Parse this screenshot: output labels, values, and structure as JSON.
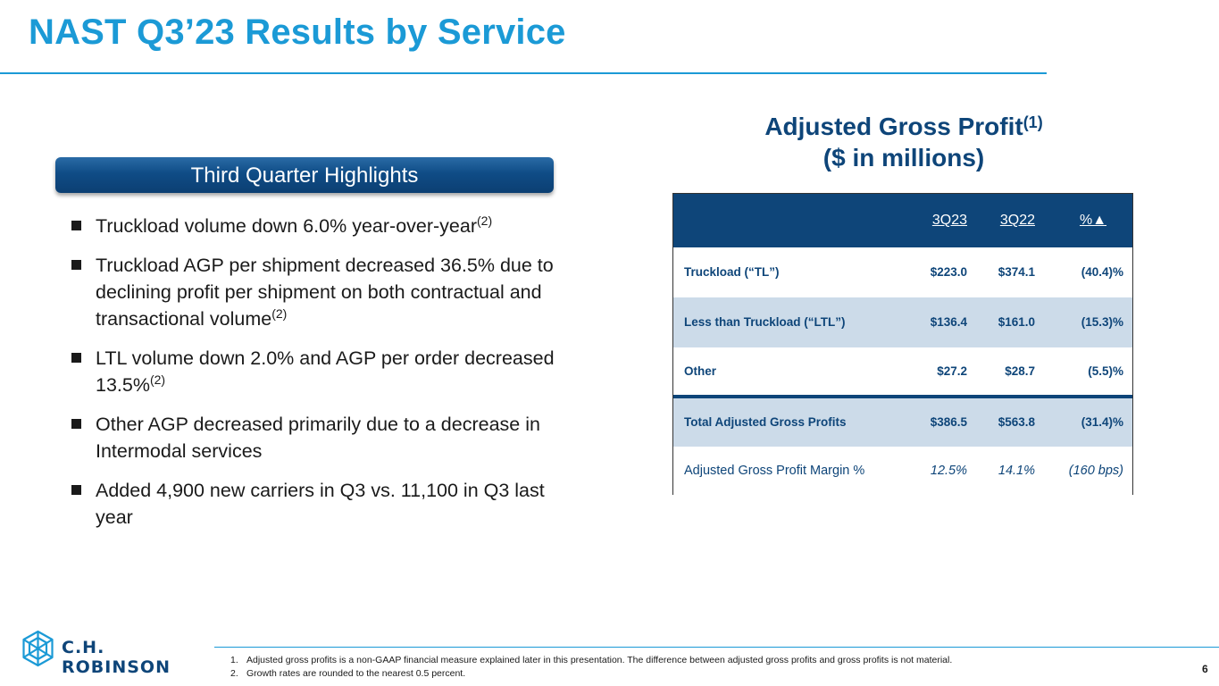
{
  "header": {
    "title": "NAST Q3’23 Results by Service"
  },
  "highlights": {
    "banner": "Third Quarter Highlights",
    "bullets": [
      {
        "text": "Truckload volume down 6.0% year-over-year",
        "sup": "(2)"
      },
      {
        "text": "Truckload AGP per shipment decreased 36.5% due to declining profit per shipment on both contractual and transactional volume",
        "sup": "(2)"
      },
      {
        "text": "LTL volume down 2.0% and AGP per order decreased 13.5%",
        "sup": "(2)"
      },
      {
        "text": "Other AGP decreased primarily due to a decrease in Intermodal services",
        "sup": ""
      },
      {
        "text": "Added 4,900 new carriers in Q3 vs. 11,100 in Q3 last year",
        "sup": ""
      }
    ]
  },
  "agp": {
    "title_line1": "Adjusted Gross Profit",
    "title_sup": "(1)",
    "title_line2": "($ in millions)",
    "columns": [
      "3Q23",
      "3Q22",
      "%▲"
    ],
    "rows": [
      {
        "label": "Truckload (“TL”)",
        "q23": "$223.0",
        "q22": "$374.1",
        "chg": "(40.4)%"
      },
      {
        "label": "Less than Truckload (“LTL”)",
        "q23": "$136.4",
        "q22": "$161.0",
        "chg": "(15.3)%"
      },
      {
        "label": "Other",
        "q23": "$27.2",
        "q22": "$28.7",
        "chg": "(5.5)%"
      },
      {
        "label": "Total Adjusted Gross Profits",
        "q23": "$386.5",
        "q22": "$563.8",
        "chg": "(31.4)%"
      },
      {
        "label": "Adjusted Gross Profit Margin %",
        "q23": "12.5%",
        "q22": "14.1%",
        "chg": "(160 bps)"
      }
    ]
  },
  "footer": {
    "logo_text": "C.H. ROBINSON",
    "footnotes": [
      {
        "num": "1.",
        "text": "Adjusted gross profits is a non-GAAP financial measure explained later in this presentation. The difference between adjusted gross profits and gross profits is not material."
      },
      {
        "num": "2.",
        "text": "Growth rates are rounded to the nearest 0.5 percent."
      }
    ],
    "page_number": "6"
  },
  "colors": {
    "accent": "#1b9ad6",
    "navy": "#0e4579",
    "row_shade": "#ccdbe9"
  }
}
